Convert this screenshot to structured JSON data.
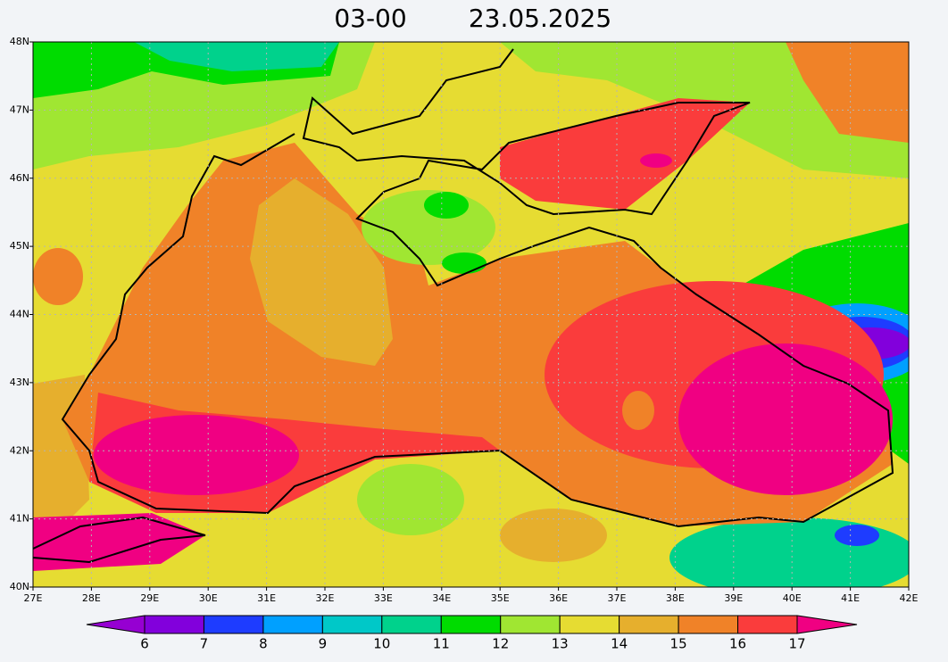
{
  "chart_data": {
    "type": "contour-map",
    "title_time": "03-00",
    "title_date": "23.05.2025",
    "xlim": [
      27,
      42
    ],
    "ylim": [
      40,
      48
    ],
    "xticks": [
      {
        "value": 27,
        "label": "27E"
      },
      {
        "value": 28,
        "label": "28E"
      },
      {
        "value": 29,
        "label": "29E"
      },
      {
        "value": 30,
        "label": "30E"
      },
      {
        "value": 31,
        "label": "31E"
      },
      {
        "value": 32,
        "label": "32E"
      },
      {
        "value": 33,
        "label": "33E"
      },
      {
        "value": 34,
        "label": "34E"
      },
      {
        "value": 35,
        "label": "35E"
      },
      {
        "value": 36,
        "label": "36E"
      },
      {
        "value": 37,
        "label": "37E"
      },
      {
        "value": 38,
        "label": "38E"
      },
      {
        "value": 39,
        "label": "39E"
      },
      {
        "value": 40,
        "label": "40E"
      },
      {
        "value": 41,
        "label": "41E"
      },
      {
        "value": 42,
        "label": "42E"
      }
    ],
    "yticks": [
      {
        "value": 40,
        "label": "40N"
      },
      {
        "value": 41,
        "label": "41N"
      },
      {
        "value": 42,
        "label": "42N"
      },
      {
        "value": 43,
        "label": "43N"
      },
      {
        "value": 44,
        "label": "44N"
      },
      {
        "value": 45,
        "label": "45N"
      },
      {
        "value": 46,
        "label": "46N"
      },
      {
        "value": 47,
        "label": "47N"
      },
      {
        "value": 48,
        "label": "48N"
      }
    ],
    "grid": true,
    "colorbar": {
      "levels": [
        6,
        7,
        8,
        9,
        10,
        11,
        12,
        13,
        14,
        15,
        16,
        17
      ],
      "colors": [
        "#9600d2",
        "#8200dc",
        "#1e3cff",
        "#00a0ff",
        "#00c8c8",
        "#00d28c",
        "#00dc00",
        "#a0e632",
        "#e6dc32",
        "#e6af2d",
        "#f08228",
        "#fa3c3c",
        "#f00082"
      ]
    }
  }
}
